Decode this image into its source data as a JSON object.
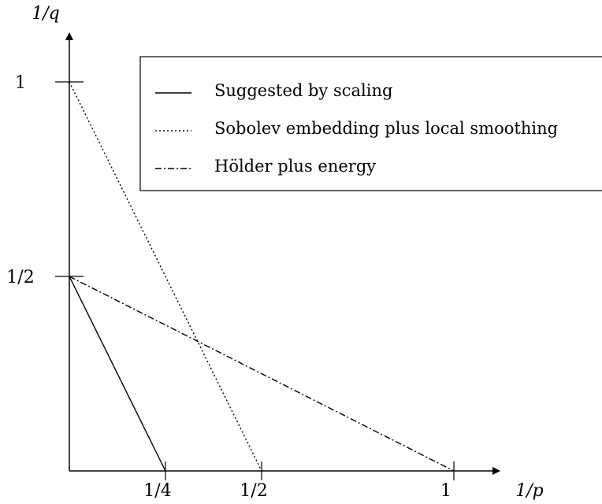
{
  "chart_data": {
    "type": "line",
    "xlabel": "1/p",
    "ylabel": "1/q",
    "xlim": [
      0,
      1.05
    ],
    "ylim": [
      0,
      1.08
    ],
    "x_ticks": [
      {
        "value": 0.25,
        "label": "1/4"
      },
      {
        "value": 0.5,
        "label": "1/2"
      },
      {
        "value": 1,
        "label": "1"
      }
    ],
    "y_ticks": [
      {
        "value": 0.5,
        "label": "1/2"
      },
      {
        "value": 1,
        "label": "1"
      }
    ],
    "series": [
      {
        "name": "Suggested by scaling",
        "style": "solid",
        "points": [
          [
            0,
            0.5
          ],
          [
            0.25,
            0
          ]
        ]
      },
      {
        "name": "Sobolev embedding plus local smoothing",
        "style": "dotted",
        "points": [
          [
            0,
            1
          ],
          [
            0.5,
            0
          ]
        ]
      },
      {
        "name": "Hölder plus energy",
        "style": "dashdot",
        "points": [
          [
            0,
            0.5
          ],
          [
            1,
            0
          ]
        ]
      }
    ],
    "legend_position": "top-right",
    "grid": false,
    "colors": {
      "ink": "#000000",
      "background": "#ffffff"
    }
  }
}
